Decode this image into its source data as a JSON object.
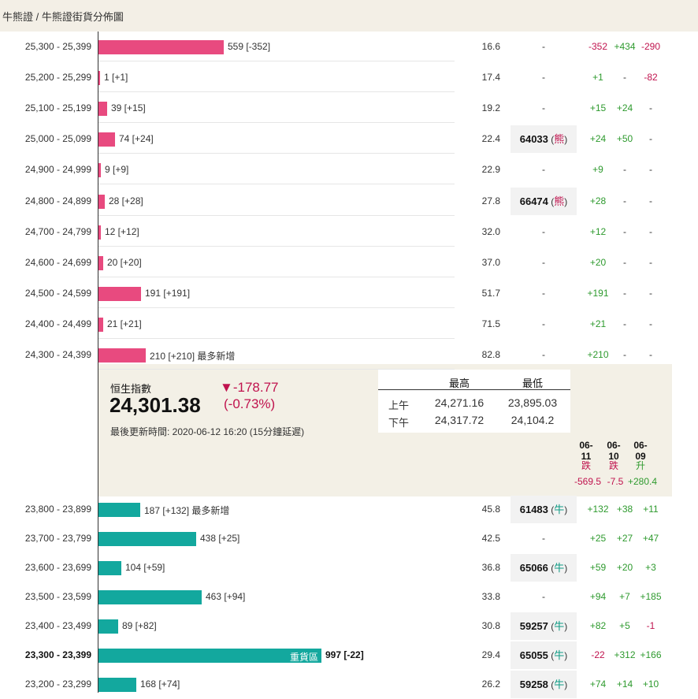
{
  "breadcrumb": "牛熊證 / 牛熊證街貨分佈圖",
  "rows_bear": [
    {
      "range": "25,300 - 25,399",
      "qty": "559 [-352]",
      "bar": 559,
      "price": "16.6",
      "code": "-",
      "c1": "-352",
      "c2": "+434",
      "c3": "-290"
    },
    {
      "range": "25,200 - 25,299",
      "qty": "1 [+1]",
      "bar": 1,
      "price": "17.4",
      "code": "-",
      "c1": "+1",
      "c2": "-",
      "c3": "-82"
    },
    {
      "range": "25,100 - 25,199",
      "qty": "39 [+15]",
      "bar": 39,
      "price": "19.2",
      "code": "-",
      "c1": "+15",
      "c2": "+24",
      "c3": "-"
    },
    {
      "range": "25,000 - 25,099",
      "qty": "74 [+24]",
      "bar": 74,
      "price": "22.4",
      "code": "64033",
      "type": "熊",
      "c1": "+24",
      "c2": "+50",
      "c3": "-"
    },
    {
      "range": "24,900 - 24,999",
      "qty": "9 [+9]",
      "bar": 9,
      "price": "22.9",
      "code": "-",
      "c1": "+9",
      "c2": "-",
      "c3": "-"
    },
    {
      "range": "24,800 - 24,899",
      "qty": "28 [+28]",
      "bar": 28,
      "price": "27.8",
      "code": "66474",
      "type": "熊",
      "c1": "+28",
      "c2": "-",
      "c3": "-"
    },
    {
      "range": "24,700 - 24,799",
      "qty": "12 [+12]",
      "bar": 12,
      "price": "32.0",
      "code": "-",
      "c1": "+12",
      "c2": "-",
      "c3": "-"
    },
    {
      "range": "24,600 - 24,699",
      "qty": "20 [+20]",
      "bar": 20,
      "price": "37.0",
      "code": "-",
      "c1": "+20",
      "c2": "-",
      "c3": "-"
    },
    {
      "range": "24,500 - 24,599",
      "qty": "191 [+191]",
      "bar": 191,
      "price": "51.7",
      "code": "-",
      "c1": "+191",
      "c2": "-",
      "c3": "-"
    },
    {
      "range": "24,400 - 24,499",
      "qty": "21 [+21]",
      "bar": 21,
      "price": "71.5",
      "code": "-",
      "c1": "+21",
      "c2": "-",
      "c3": "-"
    },
    {
      "range": "24,300 - 24,399",
      "qty": "210 [+210] 最多新增",
      "bar": 210,
      "price": "82.8",
      "code": "-",
      "c1": "+210",
      "c2": "-",
      "c3": "-"
    }
  ],
  "rows_bull": [
    {
      "range": "23,800 - 23,899",
      "qty": "187 [+132] 最多新增",
      "bar": 187,
      "price": "45.8",
      "code": "61483",
      "type": "牛",
      "c1": "+132",
      "c2": "+38",
      "c3": "+11"
    },
    {
      "range": "23,700 - 23,799",
      "qty": "438 [+25]",
      "bar": 438,
      "price": "42.5",
      "code": "-",
      "c1": "+25",
      "c2": "+27",
      "c3": "+47"
    },
    {
      "range": "23,600 - 23,699",
      "qty": "104 [+59]",
      "bar": 104,
      "price": "36.8",
      "code": "65066",
      "type": "牛",
      "c1": "+59",
      "c2": "+20",
      "c3": "+3"
    },
    {
      "range": "23,500 - 23,599",
      "qty": "463 [+94]",
      "bar": 463,
      "price": "33.8",
      "code": "-",
      "c1": "+94",
      "c2": "+7",
      "c3": "+185"
    },
    {
      "range": "23,400 - 23,499",
      "qty": "89 [+82]",
      "bar": 89,
      "price": "30.8",
      "code": "59257",
      "type": "牛",
      "c1": "+82",
      "c2": "+5",
      "c3": "-1"
    },
    {
      "range": "23,300 - 23,399",
      "qty": "997 [-22]",
      "bar": 997,
      "heavy": "重貨區",
      "bold": true,
      "price": "29.4",
      "code": "65055",
      "type": "牛",
      "c1": "-22",
      "c2": "+312",
      "c3": "+166"
    },
    {
      "range": "23,200 - 23,299",
      "qty": "168 [+74]",
      "bar": 168,
      "price": "26.2",
      "code": "59258",
      "type": "牛",
      "c1": "+74",
      "c2": "+14",
      "c3": "+10"
    }
  ],
  "index": {
    "name": "恒生指數",
    "value": "24,301.38",
    "change": "▼-178.77",
    "change_pct": "(-0.73%)",
    "updated": "最後更新時間: 2020-06-12 16:20 (15分鐘延遲)"
  },
  "highlow": {
    "high_label": "最高",
    "low_label": "最低",
    "am_label": "上午",
    "pm_label": "下午",
    "am_high": "24,271.16",
    "am_low": "23,895.03",
    "pm_high": "24,317.72",
    "pm_low": "24,104.2"
  },
  "days": [
    {
      "date": "06-11",
      "dir": "跌",
      "chg": "-569.5",
      "sign": "neg"
    },
    {
      "date": "06-10",
      "dir": "跌",
      "chg": "-7.5",
      "sign": "neg"
    },
    {
      "date": "06-09",
      "dir": "升",
      "chg": "+280.4",
      "sign": "pos"
    }
  ],
  "colors": {
    "bear": "#e84a7f",
    "bull": "#13a89e",
    "up": "#2e9a2e",
    "down": "#c0134e"
  }
}
